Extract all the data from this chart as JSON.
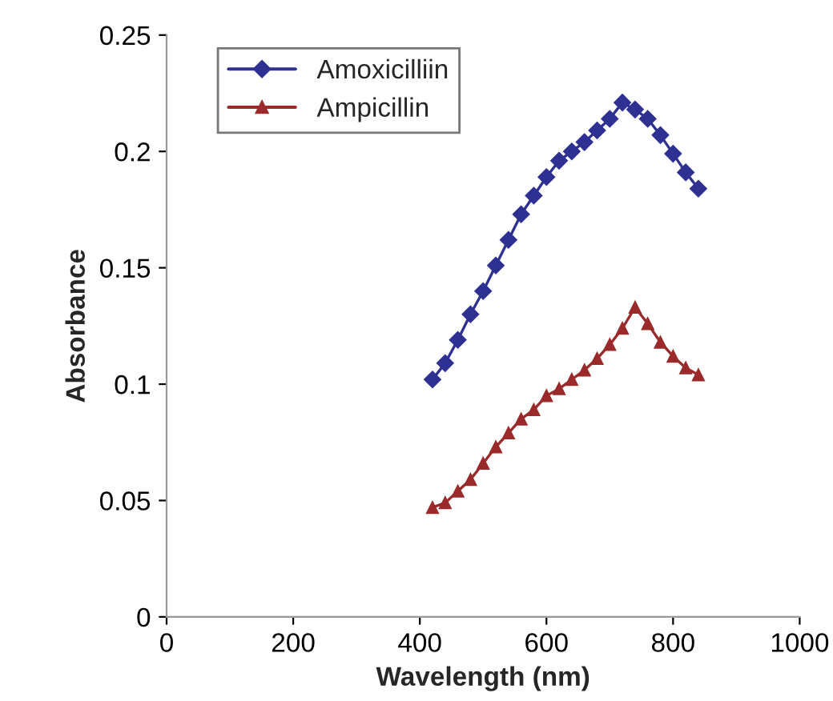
{
  "chart_data": {
    "type": "line",
    "xlabel": "Wavelength (nm)",
    "ylabel": "Absorbance",
    "x": [
      420,
      440,
      460,
      480,
      500,
      520,
      540,
      560,
      580,
      600,
      620,
      640,
      660,
      680,
      700,
      720,
      740,
      760,
      780,
      800,
      820,
      840
    ],
    "series": [
      {
        "name": "Amoxicilliin",
        "color": "#2e3192",
        "marker": "diamond",
        "values": [
          0.102,
          0.109,
          0.119,
          0.13,
          0.14,
          0.151,
          0.162,
          0.173,
          0.181,
          0.189,
          0.196,
          0.2,
          0.204,
          0.209,
          0.214,
          0.221,
          0.218,
          0.214,
          0.207,
          0.199,
          0.191,
          0.184
        ]
      },
      {
        "name": "Ampicillin",
        "color": "#9b2a2a",
        "marker": "triangle",
        "values": [
          0.047,
          0.049,
          0.054,
          0.059,
          0.066,
          0.073,
          0.079,
          0.085,
          0.089,
          0.095,
          0.098,
          0.102,
          0.106,
          0.111,
          0.117,
          0.124,
          0.133,
          0.126,
          0.118,
          0.112,
          0.107,
          0.104
        ]
      }
    ],
    "xlim": [
      0,
      1000
    ],
    "xticks": [
      0,
      200,
      400,
      600,
      800,
      1000
    ],
    "ylim": [
      0,
      0.25
    ],
    "yticks": [
      0,
      0.05,
      0.1,
      0.15,
      0.2,
      0.25
    ],
    "grid": false,
    "legend": "top left",
    "line_style": "solid"
  }
}
